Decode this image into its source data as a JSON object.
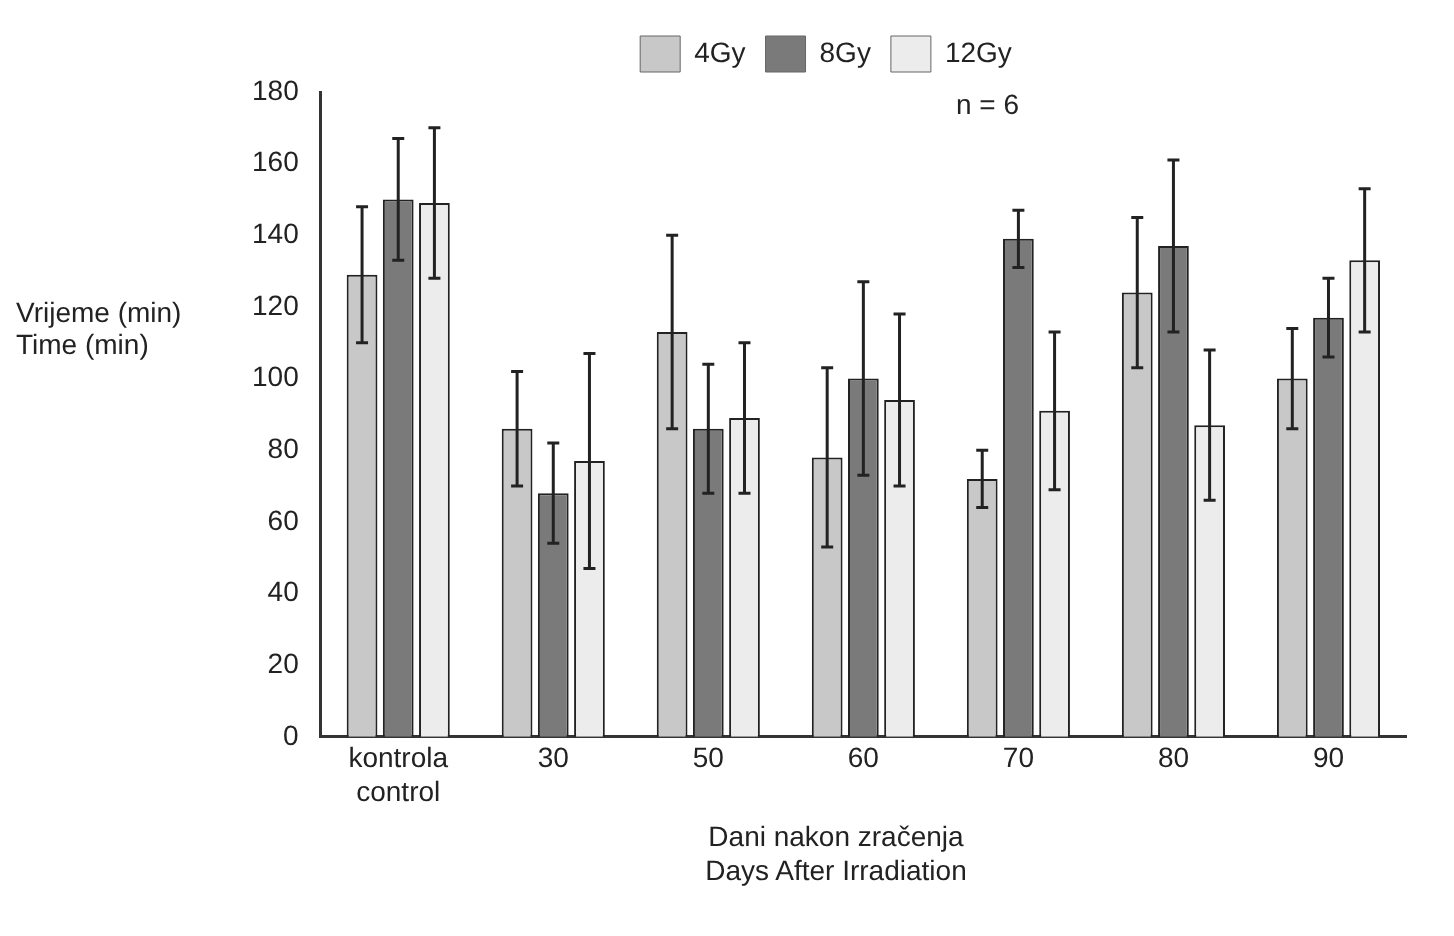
{
  "chart_data": {
    "type": "bar",
    "ylabel": "Vrijeme (min)\nTime (min)",
    "xlabel": "Dani nakon zračenja\nDays After Irradiation",
    "categories": [
      "kontrola\ncontrol",
      "30",
      "50",
      "60",
      "70",
      "80",
      "90"
    ],
    "series": [
      {
        "name": "4Gy",
        "color": "#c8c8c8",
        "values": [
          129,
          86,
          113,
          78,
          72,
          124,
          100
        ],
        "errors": [
          19,
          16,
          27,
          25,
          8,
          21,
          14
        ]
      },
      {
        "name": "8Gy",
        "color": "#7a7a7a",
        "values": [
          150,
          68,
          86,
          100,
          139,
          137,
          117
        ],
        "errors": [
          17,
          14,
          18,
          27,
          8,
          24,
          11
        ]
      },
      {
        "name": "12Gy",
        "color": "#ececec",
        "values": [
          149,
          77,
          89,
          94,
          91,
          87,
          133
        ],
        "errors": [
          21,
          30,
          21,
          24,
          22,
          21,
          20
        ]
      }
    ],
    "ylim": [
      0,
      180
    ],
    "yticks": [
      0,
      20,
      40,
      60,
      80,
      100,
      120,
      140,
      160,
      180
    ],
    "grid": false,
    "legend": "top",
    "annotations": [
      "n = 6"
    ]
  }
}
